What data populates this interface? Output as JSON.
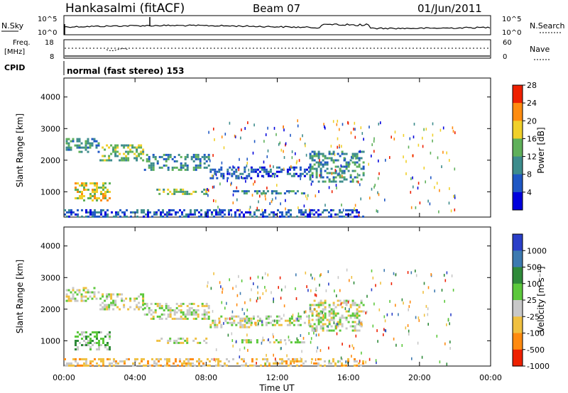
{
  "header": {
    "station": "Hankasalmi (fitACF)",
    "beam": "Beam 07",
    "date": "01/Jun/2011"
  },
  "status_panels": {
    "nsky_label": "N.Sky",
    "nsearch_label": "N.Search",
    "noise_ticks": [
      "10^5",
      "10^0"
    ],
    "freq_label_line1": "Freq.",
    "freq_label_line2": "[MHz]",
    "freq_ticks": [
      "18",
      "8"
    ],
    "nave_label": "Nave",
    "nave_ticks": [
      "60",
      "0"
    ],
    "cpid_label": "CPID",
    "cpid_text": "normal (fast stereo) 153"
  },
  "chart_data": [
    {
      "type": "heatmap",
      "name": "power-panel",
      "ylabel": "Slant Range [km]",
      "y_ticks": [
        "1000",
        "2000",
        "3000",
        "4000"
      ],
      "ylim": [
        200,
        4600
      ],
      "colorbar_label": "Power [dB]",
      "colorbar_ticks": [
        "4",
        "8",
        "12",
        "16",
        "20",
        "24",
        "28"
      ],
      "colorbar_colors": [
        "#0000dd",
        "#1f57c4",
        "#3d8c8c",
        "#5fb05a",
        "#f0d02a",
        "#ff8c10",
        "#ee2000"
      ],
      "echo_regions": [
        {
          "t0": 0.1,
          "t1": 2.0,
          "r0": 2250,
          "r1": 2700,
          "level": 2
        },
        {
          "t0": 2.0,
          "t1": 4.5,
          "r0": 2000,
          "r1": 2500,
          "level": 3
        },
        {
          "t0": 4.5,
          "t1": 8.2,
          "r0": 1700,
          "r1": 2200,
          "level": 2
        },
        {
          "t0": 8.2,
          "t1": 10.5,
          "r0": 1400,
          "r1": 1800,
          "level": 1
        },
        {
          "t0": 10.5,
          "t1": 13.8,
          "r0": 1500,
          "r1": 1800,
          "level": 1
        },
        {
          "t0": 13.8,
          "t1": 16.8,
          "r0": 1300,
          "r1": 2300,
          "level": 2
        },
        {
          "t0": 0.6,
          "t1": 2.6,
          "r0": 700,
          "r1": 1300,
          "level": 4
        },
        {
          "t0": 5.2,
          "t1": 8.0,
          "r0": 900,
          "r1": 1100,
          "level": 3
        },
        {
          "t0": 9.5,
          "t1": 13.5,
          "r0": 950,
          "r1": 1050,
          "level": 2
        },
        {
          "t0": 0.0,
          "t1": 16.8,
          "r0": 200,
          "r1": 450,
          "level": 1
        }
      ]
    },
    {
      "type": "heatmap",
      "name": "velocity-panel",
      "ylabel": "Slant Range [km]",
      "y_ticks": [
        "1000",
        "2000",
        "3000",
        "4000"
      ],
      "ylim": [
        200,
        4600
      ],
      "xlabel": "Time UT",
      "x_ticks": [
        "00:00",
        "04:00",
        "08:00",
        "12:00",
        "16:00",
        "20:00",
        "00:00"
      ],
      "xlim": [
        0,
        24
      ],
      "colorbar_label": "Velocity [m s⁻¹]",
      "colorbar_ticks": [
        "1000",
        "500",
        "100",
        "25",
        "-25",
        "-100",
        "-500",
        "-1000"
      ],
      "colorbar_colors": [
        "#2a3fc8",
        "#3d7ab0",
        "#2f8a3a",
        "#5cc83c",
        "#c8c8c8",
        "#f0c040",
        "#ff8a10",
        "#ee2000"
      ],
      "echo_regions": [
        {
          "t0": 0.1,
          "t1": 2.0,
          "r0": 2250,
          "r1": 2700,
          "level": 4
        },
        {
          "t0": 2.0,
          "t1": 4.5,
          "r0": 2000,
          "r1": 2500,
          "level": 4
        },
        {
          "t0": 4.5,
          "t1": 8.2,
          "r0": 1700,
          "r1": 2200,
          "level": 4
        },
        {
          "t0": 8.2,
          "t1": 10.5,
          "r0": 1400,
          "r1": 1800,
          "level": 4
        },
        {
          "t0": 10.5,
          "t1": 13.8,
          "r0": 1500,
          "r1": 1800,
          "level": 4
        },
        {
          "t0": 13.8,
          "t1": 16.8,
          "r0": 1300,
          "r1": 2300,
          "level": 4
        },
        {
          "t0": 0.6,
          "t1": 2.6,
          "r0": 700,
          "r1": 1300,
          "level": 3
        },
        {
          "t0": 5.2,
          "t1": 8.0,
          "r0": 900,
          "r1": 1100,
          "level": 4
        },
        {
          "t0": 9.5,
          "t1": 13.5,
          "r0": 950,
          "r1": 1050,
          "level": 4
        },
        {
          "t0": 0.0,
          "t1": 16.8,
          "r0": 200,
          "r1": 450,
          "level": 5
        }
      ]
    }
  ]
}
